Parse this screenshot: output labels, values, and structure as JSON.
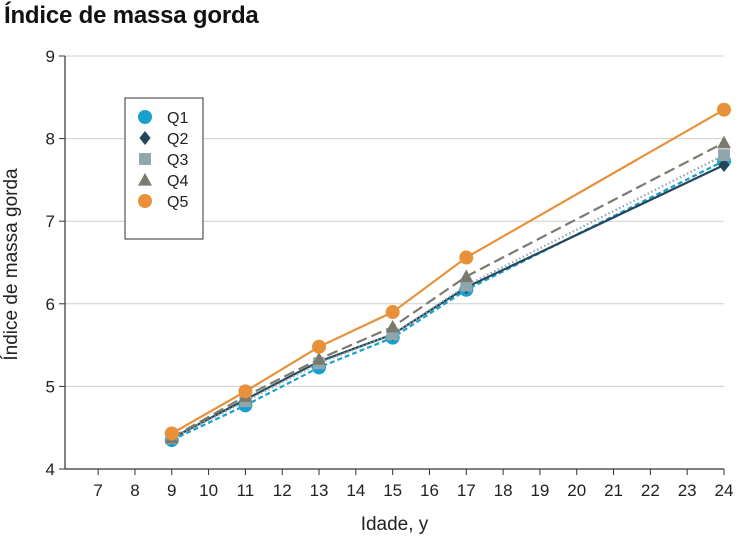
{
  "chart_data": {
    "type": "line",
    "title": "Índice de massa gorda",
    "xlabel": "Idade, y",
    "ylabel": "Índice de massa gorda",
    "xlim": [
      6.1,
      24
    ],
    "ylim": [
      4,
      9
    ],
    "x_ticks": [
      7,
      8,
      9,
      10,
      11,
      12,
      13,
      14,
      15,
      16,
      17,
      18,
      19,
      20,
      21,
      22,
      23,
      24
    ],
    "y_ticks": [
      4,
      5,
      6,
      7,
      8,
      9
    ],
    "grid": "horizontal",
    "legend_position": "top-left",
    "x": [
      9,
      11,
      13,
      15,
      17,
      24
    ],
    "series": [
      {
        "name": "Q1",
        "values": [
          4.35,
          4.77,
          5.23,
          5.59,
          6.17,
          7.73
        ],
        "color": "#1AA0CF",
        "marker": "circle",
        "line_style": "dashed"
      },
      {
        "name": "Q2",
        "values": [
          4.37,
          4.84,
          5.3,
          5.63,
          6.2,
          7.68
        ],
        "color": "#23475A",
        "marker": "diamond",
        "line_style": "solid"
      },
      {
        "name": "Q3",
        "values": [
          4.37,
          4.82,
          5.28,
          5.63,
          6.22,
          7.8
        ],
        "color": "#8FA7AC",
        "marker": "square",
        "line_style": "dotted"
      },
      {
        "name": "Q4",
        "values": [
          4.38,
          4.88,
          5.33,
          5.72,
          6.33,
          7.95
        ],
        "color": "#7B7A6E",
        "marker": "triangle",
        "line_style": "long-dashed"
      },
      {
        "name": "Q5",
        "values": [
          4.43,
          4.94,
          5.48,
          5.9,
          6.56,
          8.35
        ],
        "color": "#E8913A",
        "marker": "circle",
        "line_style": "solid"
      }
    ]
  }
}
